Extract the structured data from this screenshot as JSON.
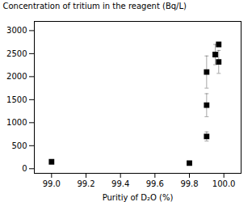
{
  "chart_data": {
    "type": "scatter",
    "xlabel": "Puritiy of D₂O (%)",
    "ylabel": "Concentration of tritium in the reagent (Bq/L)",
    "x": [
      99.0,
      99.8,
      99.9,
      99.9,
      99.9,
      99.95,
      99.97,
      99.97
    ],
    "values": [
      150,
      120,
      700,
      1380,
      2100,
      2480,
      2320,
      2700
    ],
    "yerr_lo": [
      0,
      0,
      100,
      250,
      350,
      220,
      250,
      0
    ],
    "yerr_hi": [
      0,
      0,
      100,
      250,
      350,
      220,
      250,
      0
    ],
    "xlim": [
      98.9,
      100.1
    ],
    "ylim": [
      -100,
      3200
    ],
    "xticks": [
      {
        "value": 99.0,
        "label": "99.0"
      },
      99.2,
      99.4,
      99.6,
      99.8,
      {
        "value": 100.0,
        "label": "100.0"
      }
    ],
    "yticks": [
      0,
      500,
      1000,
      1500,
      2000,
      2500,
      3000
    ],
    "color": "black",
    "marker": "square"
  }
}
